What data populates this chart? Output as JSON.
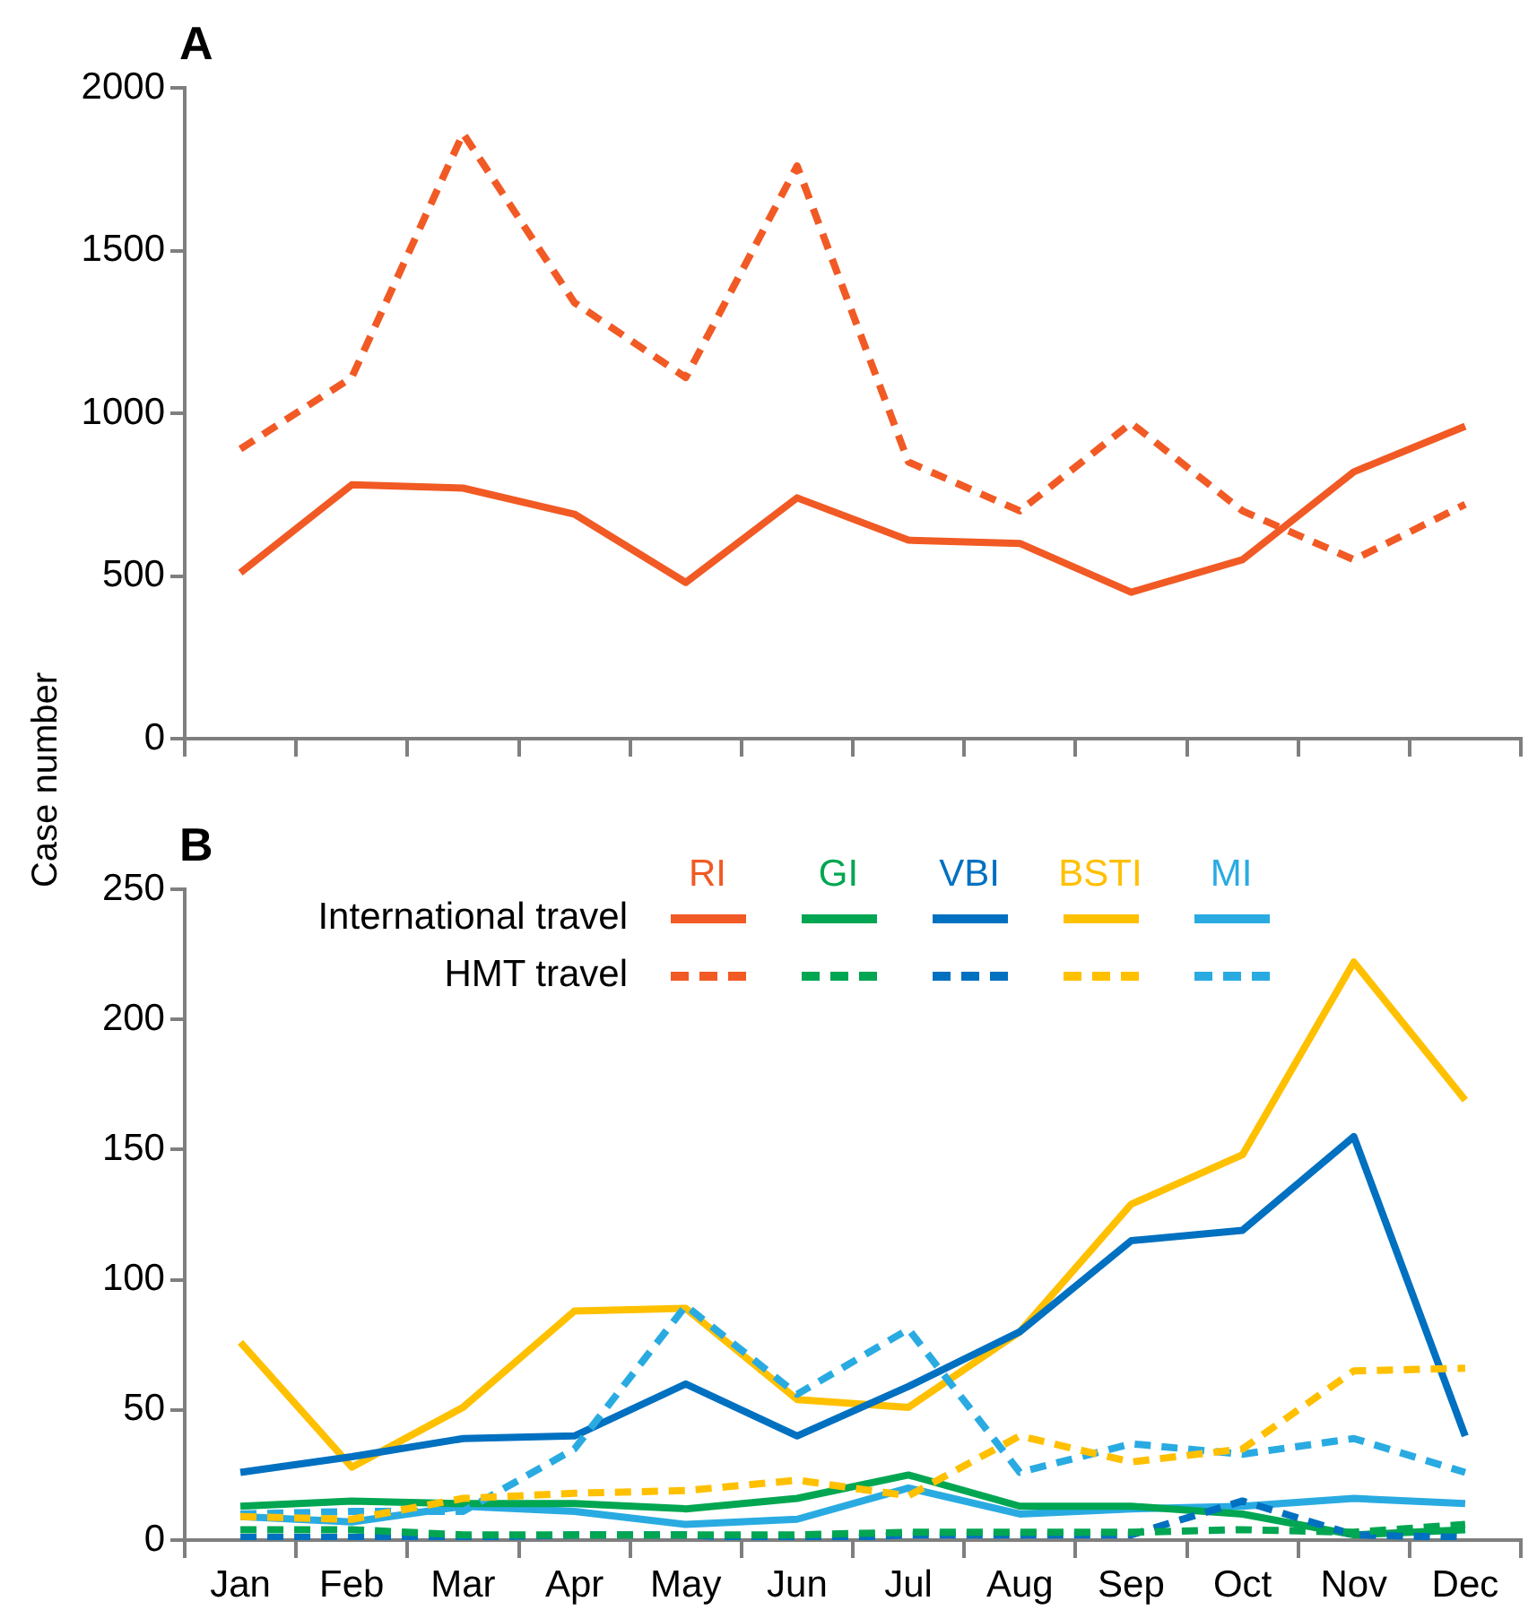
{
  "chart_data": [
    {
      "type": "line",
      "title": "A",
      "ylabel": "Case number",
      "categories": [
        null,
        null,
        null,
        null,
        null,
        null,
        null,
        null,
        null,
        null,
        null,
        null
      ],
      "ylim": [
        0,
        2000
      ],
      "yticks": [
        0,
        500,
        1000,
        1500,
        2000
      ],
      "grid": false,
      "legend": false,
      "tick_labels": "y",
      "marker": "none",
      "series": [
        {
          "name": "RI",
          "color": "#f15a24",
          "line_style": "solid",
          "values": [
            510,
            780,
            770,
            690,
            480,
            740,
            610,
            600,
            450,
            550,
            820,
            960
          ]
        },
        {
          "color": "#f15a24",
          "line_style": "dashed",
          "values": [
            890,
            1110,
            1860,
            1340,
            1110,
            1760,
            850,
            700,
            970,
            700,
            550,
            720
          ]
        }
      ]
    },
    {
      "type": "line",
      "title": "B",
      "categories": [
        "Jan",
        "Feb",
        "Mar",
        "Apr",
        "May",
        "Jun",
        "Jul",
        "Aug",
        "Sep",
        "Oct",
        "Nov",
        "Dec"
      ],
      "ylim": [
        0,
        250
      ],
      "yticks": [
        0,
        50,
        100,
        150,
        200,
        250
      ],
      "grid": false,
      "legend": "top",
      "marker": "none",
      "annotations": [
        "International travel",
        "HMT travel"
      ],
      "series": [
        {
          "name": "GI",
          "color": "#00a651",
          "line_style": "solid",
          "values": [
            13,
            15,
            14,
            14,
            12,
            16,
            25,
            13,
            13,
            10,
            2,
            4
          ]
        },
        {
          "name": "VBI",
          "color": "#0070c0",
          "line_style": "solid",
          "values": [
            26,
            32,
            39,
            40,
            60,
            40,
            59,
            80,
            115,
            119,
            155,
            40
          ]
        },
        {
          "name": "BSTI",
          "color": "#ffc000",
          "line_style": "solid",
          "values": [
            76,
            28,
            51,
            88,
            89,
            54,
            51,
            80,
            129,
            148,
            222,
            169
          ]
        },
        {
          "name": "MI",
          "color": "#29abe2",
          "line_style": "solid",
          "values": [
            9,
            7,
            13,
            11,
            6,
            8,
            20,
            10,
            12,
            13,
            16,
            14
          ]
        },
        {
          "color": "#00a651",
          "line_style": "dashed",
          "values": [
            4,
            4,
            2,
            2,
            2,
            2,
            3,
            3,
            3,
            4,
            3,
            6
          ]
        },
        {
          "color": "#0070c0",
          "line_style": "dashed",
          "values": [
            1,
            1,
            1,
            2,
            2,
            0,
            2,
            2,
            2,
            15,
            2,
            1
          ]
        },
        {
          "color": "#ffc000",
          "line_style": "dashed",
          "values": [
            9,
            8,
            16,
            18,
            19,
            23,
            17,
            40,
            30,
            35,
            65,
            66
          ]
        },
        {
          "color": "#29abe2",
          "line_style": "dashed",
          "values": [
            10,
            11,
            11,
            35,
            90,
            56,
            81,
            26,
            37,
            33,
            39,
            26
          ]
        }
      ]
    }
  ]
}
